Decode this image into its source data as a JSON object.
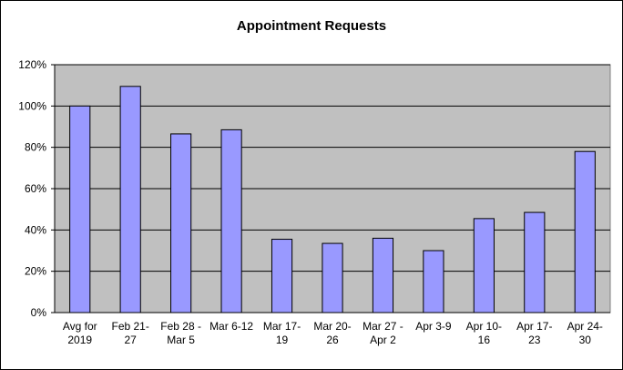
{
  "chart_data": {
    "type": "bar",
    "title": "Appointment Requests",
    "categories": [
      "Avg for\n2019",
      "Feb 21-\n27",
      "Feb 28 -\nMar 5",
      "Mar 6-12",
      "Mar 17-\n19",
      "Mar 20-\n26",
      "Mar 27 -\nApr 2",
      "Apr 3-9",
      "Apr 10-\n16",
      "Apr 17-\n23",
      "Apr 24-\n30"
    ],
    "values": [
      100,
      109.5,
      86.5,
      88.5,
      35.5,
      33.5,
      36,
      30,
      45.5,
      48.5,
      78
    ],
    "color": "#9999ff",
    "ylim": [
      0,
      120
    ],
    "yticks": [
      {
        "value": 0,
        "label": "0%"
      },
      {
        "value": 20,
        "label": "20%"
      },
      {
        "value": 40,
        "label": "40%"
      },
      {
        "value": 60,
        "label": "60%"
      },
      {
        "value": 80,
        "label": "80%"
      },
      {
        "value": 100,
        "label": "100%"
      },
      {
        "value": 120,
        "label": "120%"
      }
    ],
    "grid": true
  }
}
